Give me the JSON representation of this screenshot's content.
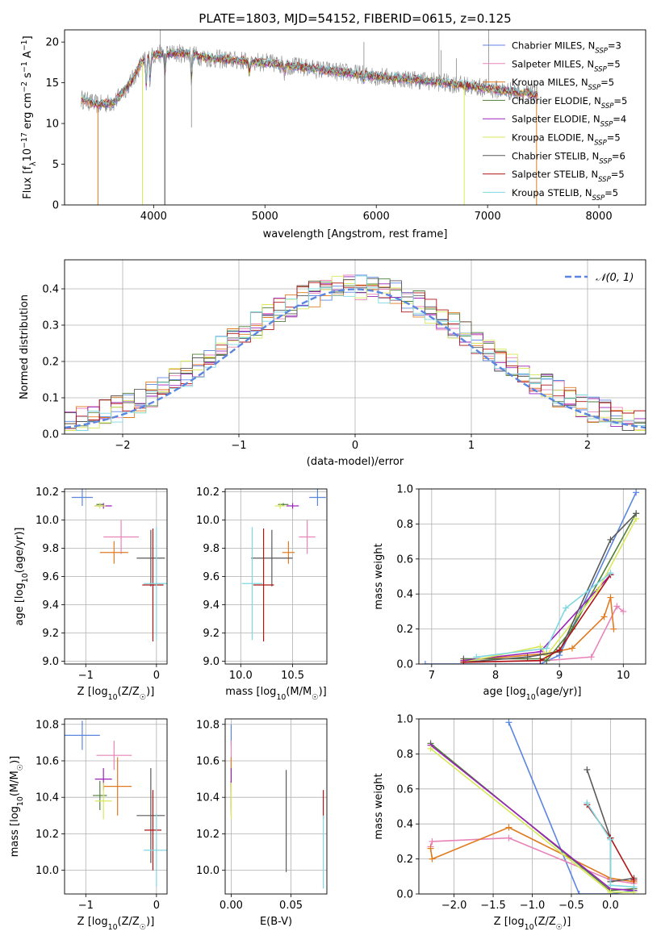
{
  "title": "PLATE=1803, MJD=54152, FIBERID=0615, z=0.125",
  "colors": {
    "chabrier_miles": "#5b86e0",
    "salpeter_miles": "#e884b8",
    "kroupa_miles": "#e07b20",
    "chabrier_elodie": "#4f7f3a",
    "salpeter_elodie": "#9b22b8",
    "kroupa_elodie": "#d8e85a",
    "chabrier_stelib": "#5a5a5a",
    "salpeter_stelib": "#b01515",
    "kroupa_stelib": "#7fd8e0",
    "normal_curve": "#5b86e0"
  },
  "chart_data": [
    {
      "id": "spectrum",
      "type": "line",
      "xlabel": "wavelength [Angstrom, rest frame]",
      "ylabel": "Flux [fλ10⁻¹⁷ erg cm⁻² s⁻¹ A⁻¹]",
      "xlim": [
        3200,
        8420
      ],
      "ylim": [
        0,
        21.5
      ],
      "xticks": [
        "4000",
        "5000",
        "6000",
        "7000",
        "8000"
      ],
      "yticks": [
        "0",
        "5",
        "10",
        "15",
        "20"
      ],
      "grid": false,
      "legend_position": "right",
      "legend": [
        {
          "label": "Chabrier MILES, N",
          "sub": "SSP",
          "suffix": "=3"
        },
        {
          "label": "Salpeter MILES, N",
          "sub": "SSP",
          "suffix": "=5"
        },
        {
          "label": "Kroupa MILES, N",
          "sub": "SSP",
          "suffix": "=5"
        },
        {
          "label": "Chabrier ELODIE, N",
          "sub": "SSP",
          "suffix": "=5"
        },
        {
          "label": "Salpeter ELODIE, N",
          "sub": "SSP",
          "suffix": "=4"
        },
        {
          "label": "Kroupa ELODIE, N",
          "sub": "SSP",
          "suffix": "=5"
        },
        {
          "label": "Chabrier STELIB, N",
          "sub": "SSP",
          "suffix": "=6"
        },
        {
          "label": "Salpeter STELIB, N",
          "sub": "SSP",
          "suffix": "=5"
        },
        {
          "label": "Kroupa STELIB, N",
          "sub": "SSP",
          "suffix": "=5"
        }
      ],
      "continuum": {
        "x": [
          3350,
          3500,
          3650,
          3800,
          3900,
          4000,
          4100,
          4300,
          4500,
          5000,
          5500,
          6000,
          6500,
          7000,
          7300,
          7450
        ],
        "y": [
          13.0,
          12.3,
          12.6,
          15.2,
          17.6,
          18.4,
          18.6,
          18.6,
          18.0,
          17.5,
          16.6,
          15.8,
          15.2,
          14.3,
          13.8,
          13.5
        ]
      }
    },
    {
      "id": "residuals",
      "type": "histogram",
      "xlabel": "(data-model)/error",
      "ylabel": "Normed distribution",
      "xlim": [
        -2.5,
        2.5
      ],
      "ylim": [
        0,
        0.48
      ],
      "xticks": [
        "−2",
        "−1",
        "0",
        "1",
        "2"
      ],
      "yticks": [
        "0.0",
        "0.1",
        "0.2",
        "0.3",
        "0.4"
      ],
      "grid": true,
      "legend_position": "top-right",
      "legend_label": "𝒩(0, 1)"
    },
    {
      "id": "age_vs_Z",
      "type": "scatter",
      "xlabel": "Z [log10(Z/Z☉)]",
      "ylabel": "age  [log10(age/yr)]",
      "xlim": [
        -1.3,
        0.15
      ],
      "ylim": [
        8.98,
        10.22
      ],
      "xticks": [
        "−1",
        "0"
      ],
      "yticks": [
        "9.0",
        "9.2",
        "9.4",
        "9.6",
        "9.8",
        "10.0",
        "10.2"
      ],
      "grid": true,
      "points": [
        {
          "model": "chabrier_miles",
          "x": -1.05,
          "xerr": 0.15,
          "y": 10.16,
          "yerr": 0.06
        },
        {
          "model": "salpeter_miles",
          "x": -0.5,
          "xerr": 0.25,
          "y": 9.88,
          "yerr": 0.12
        },
        {
          "model": "kroupa_miles",
          "x": -0.6,
          "xerr": 0.2,
          "y": 9.77,
          "yerr": 0.08
        },
        {
          "model": "chabrier_elodie",
          "x": -0.8,
          "xerr": 0.05,
          "y": 10.11,
          "yerr": 0.01
        },
        {
          "model": "salpeter_elodie",
          "x": -0.75,
          "xerr": 0.12,
          "y": 10.1,
          "yerr": 0.02
        },
        {
          "model": "kroupa_elodie",
          "x": -0.8,
          "xerr": 0.08,
          "y": 10.1,
          "yerr": 0.02
        },
        {
          "model": "chabrier_stelib",
          "x": -0.08,
          "xerr": 0.2,
          "y": 9.73,
          "yerr": 0.2
        },
        {
          "model": "salpeter_stelib",
          "x": -0.05,
          "xerr": 0.15,
          "y": 9.54,
          "yerr": 0.4
        },
        {
          "model": "kroupa_stelib",
          "x": 0.0,
          "xerr": 0.18,
          "y": 9.55,
          "yerr": 0.4
        }
      ]
    },
    {
      "id": "age_vs_mass",
      "type": "scatter",
      "xlabel": "mass [log10(M/M☉)]",
      "ylabel": "",
      "xlim": [
        9.85,
        10.83
      ],
      "ylim": [
        8.98,
        10.22
      ],
      "xticks": [
        "10.0",
        "10.5"
      ],
      "yticks": [
        "9.0",
        "9.2",
        "9.4",
        "9.6",
        "9.8",
        "10.0",
        "10.2"
      ],
      "grid": true,
      "points": [
        {
          "model": "chabrier_miles",
          "x": 10.74,
          "xerr": 0.08,
          "y": 10.16,
          "yerr": 0.06
        },
        {
          "model": "salpeter_miles",
          "x": 10.64,
          "xerr": 0.08,
          "y": 9.88,
          "yerr": 0.12
        },
        {
          "model": "kroupa_miles",
          "x": 10.46,
          "xerr": 0.06,
          "y": 9.77,
          "yerr": 0.08
        },
        {
          "model": "chabrier_elodie",
          "x": 10.41,
          "xerr": 0.05,
          "y": 10.11,
          "yerr": 0.01
        },
        {
          "model": "salpeter_elodie",
          "x": 10.5,
          "xerr": 0.06,
          "y": 10.1,
          "yerr": 0.02
        },
        {
          "model": "kroupa_elodie",
          "x": 10.38,
          "xerr": 0.05,
          "y": 10.1,
          "yerr": 0.02
        },
        {
          "model": "chabrier_stelib",
          "x": 10.3,
          "xerr": 0.2,
          "y": 9.73,
          "yerr": 0.2
        },
        {
          "model": "salpeter_stelib",
          "x": 10.22,
          "xerr": 0.1,
          "y": 9.54,
          "yerr": 0.4
        },
        {
          "model": "kroupa_stelib",
          "x": 10.11,
          "xerr": 0.1,
          "y": 9.55,
          "yerr": 0.4
        }
      ]
    },
    {
      "id": "massweight_vs_age",
      "type": "line",
      "xlabel": "age  [log10(age/yr)]",
      "ylabel": "mass weight",
      "xlim": [
        6.8,
        10.35
      ],
      "ylim": [
        0,
        1.0
      ],
      "xticks": [
        "7",
        "8",
        "9",
        "10"
      ],
      "yticks": [
        "0.0",
        "0.2",
        "0.4",
        "0.6",
        "0.8",
        "1.0"
      ],
      "grid": true,
      "series": [
        {
          "model": "chabrier_miles",
          "x": [
            6.9,
            8.7,
            9.0,
            10.2
          ],
          "y": [
            0.0,
            0.0,
            0.05,
            0.98
          ]
        },
        {
          "model": "salpeter_miles",
          "x": [
            7.5,
            8.8,
            9.5,
            9.9,
            10.0
          ],
          "y": [
            0.01,
            0.02,
            0.04,
            0.33,
            0.3
          ]
        },
        {
          "model": "kroupa_miles",
          "x": [
            7.5,
            8.8,
            9.2,
            9.7,
            9.8,
            9.85
          ],
          "y": [
            0.02,
            0.06,
            0.09,
            0.27,
            0.38,
            0.2
          ]
        },
        {
          "model": "chabrier_elodie",
          "x": [
            7.5,
            8.7,
            8.8,
            9.2,
            10.2
          ],
          "y": [
            0.03,
            0.03,
            0.02,
            0.2,
            0.86
          ]
        },
        {
          "model": "salpeter_elodie",
          "x": [
            7.5,
            8.7,
            9.8
          ],
          "y": [
            0.02,
            0.07,
            0.51
          ]
        },
        {
          "model": "kroupa_elodie",
          "x": [
            7.5,
            8.7,
            8.8,
            9.6,
            10.2
          ],
          "y": [
            0.01,
            0.1,
            0.05,
            0.42,
            0.83
          ]
        },
        {
          "model": "chabrier_stelib",
          "x": [
            7.5,
            8.5,
            9.0,
            9.8,
            10.2
          ],
          "y": [
            0.01,
            0.04,
            0.07,
            0.71,
            0.86
          ]
        },
        {
          "model": "salpeter_stelib",
          "x": [
            7.5,
            8.7,
            9.0,
            9.8
          ],
          "y": [
            0.01,
            0.02,
            0.08,
            0.51
          ]
        },
        {
          "model": "kroupa_stelib",
          "x": [
            7.7,
            8.8,
            9.1,
            9.8
          ],
          "y": [
            0.04,
            0.09,
            0.32,
            0.52
          ]
        }
      ]
    },
    {
      "id": "mass_vs_Z",
      "type": "scatter",
      "xlabel": "Z [log10(Z/Z☉)]",
      "ylabel": "mass [log10(M/M☉)]",
      "xlim": [
        -1.3,
        0.15
      ],
      "ylim": [
        9.87,
        10.83
      ],
      "xticks": [
        "−1",
        "0"
      ],
      "yticks": [
        "10.0",
        "10.2",
        "10.4",
        "10.6",
        "10.8"
      ],
      "grid": true,
      "points": [
        {
          "model": "chabrier_miles",
          "x": -1.05,
          "xerr": 0.25,
          "y": 10.74,
          "yerr": 0.08
        },
        {
          "model": "salpeter_miles",
          "x": -0.6,
          "xerr": 0.25,
          "y": 10.63,
          "yerr": 0.08
        },
        {
          "model": "kroupa_miles",
          "x": -0.55,
          "xerr": 0.2,
          "y": 10.46,
          "yerr": 0.16
        },
        {
          "model": "chabrier_elodie",
          "x": -0.8,
          "xerr": 0.1,
          "y": 10.41,
          "yerr": 0.08
        },
        {
          "model": "salpeter_elodie",
          "x": -0.75,
          "xerr": 0.12,
          "y": 10.5,
          "yerr": 0.06
        },
        {
          "model": "kroupa_elodie",
          "x": -0.75,
          "xerr": 0.12,
          "y": 10.38,
          "yerr": 0.1
        },
        {
          "model": "chabrier_stelib",
          "x": -0.08,
          "xerr": 0.2,
          "y": 10.3,
          "yerr": 0.26
        },
        {
          "model": "salpeter_stelib",
          "x": -0.05,
          "xerr": 0.12,
          "y": 10.22,
          "yerr": 0.22
        },
        {
          "model": "kroupa_stelib",
          "x": 0.0,
          "xerr": 0.18,
          "y": 10.11,
          "yerr": 0.2
        }
      ]
    },
    {
      "id": "mass_vs_ebv",
      "type": "scatter",
      "xlabel": "E(B-V)",
      "ylabel": "",
      "xlim": [
        -0.005,
        0.08
      ],
      "ylim": [
        9.87,
        10.83
      ],
      "xticks": [
        "0.00",
        "0.05"
      ],
      "yticks": [
        "10.0",
        "10.2",
        "10.4",
        "10.6",
        "10.8"
      ],
      "grid": true,
      "points": [
        {
          "model": "chabrier_miles",
          "x": 0.0,
          "xerr": 0,
          "y": 10.74,
          "yerr": 0.06
        },
        {
          "model": "salpeter_miles",
          "x": 0.0,
          "xerr": 0,
          "y": 10.63,
          "yerr": 0.08
        },
        {
          "model": "kroupa_miles",
          "x": 0.0,
          "xerr": 0,
          "y": 10.46,
          "yerr": 0.16
        },
        {
          "model": "chabrier_elodie",
          "x": 0.0,
          "xerr": 0,
          "y": 10.41,
          "yerr": 0.08
        },
        {
          "model": "salpeter_elodie",
          "x": 0.0,
          "xerr": 0,
          "y": 10.5,
          "yerr": 0.06
        },
        {
          "model": "kroupa_elodie",
          "x": 0.0,
          "xerr": 0,
          "y": 10.38,
          "yerr": 0.1
        },
        {
          "model": "chabrier_stelib",
          "x": 0.046,
          "xerr": 0,
          "y": 10.27,
          "yerr": 0.28
        },
        {
          "model": "salpeter_stelib",
          "x": 0.077,
          "xerr": 0,
          "y": 10.36,
          "yerr": 0.08
        },
        {
          "model": "kroupa_stelib",
          "x": 0.077,
          "xerr": 0,
          "y": 10.1,
          "yerr": 0.2
        }
      ]
    },
    {
      "id": "massweight_vs_Z",
      "type": "line",
      "xlabel": "Z [log10(Z/Z☉)]",
      "ylabel": "mass weight",
      "xlim": [
        -2.45,
        0.45
      ],
      "ylim": [
        0,
        1.0
      ],
      "xticks": [
        "−2.0",
        "−1.5",
        "−1.0",
        "−0.5",
        "0.0"
      ],
      "yticks": [
        "0.0",
        "0.2",
        "0.4",
        "0.6",
        "0.8",
        "1.0"
      ],
      "grid": true,
      "series": [
        {
          "model": "chabrier_miles",
          "x": [
            -1.3,
            -0.4,
            0.0,
            0.3
          ],
          "y": [
            0.98,
            0.0,
            0.0,
            0.02
          ]
        },
        {
          "model": "salpeter_miles",
          "x": [
            -2.3,
            -2.28,
            -1.3,
            0.0,
            0.3
          ],
          "y": [
            0.27,
            0.3,
            0.32,
            0.08,
            0.06
          ]
        },
        {
          "model": "kroupa_miles",
          "x": [
            -2.3,
            -2.28,
            -1.3,
            0.0,
            0.3
          ],
          "y": [
            0.26,
            0.2,
            0.38,
            0.09,
            0.07
          ]
        },
        {
          "model": "chabrier_elodie",
          "x": [
            -2.3,
            0.0,
            0.3
          ],
          "y": [
            0.86,
            0.02,
            0.03
          ]
        },
        {
          "model": "salpeter_elodie",
          "x": [
            -2.3,
            0.0,
            0.3
          ],
          "y": [
            0.85,
            0.03,
            0.02
          ]
        },
        {
          "model": "kroupa_elodie",
          "x": [
            -2.3,
            0.0,
            0.3
          ],
          "y": [
            0.83,
            0.01,
            0.01
          ]
        },
        {
          "model": "chabrier_stelib",
          "x": [
            -0.3,
            0.0,
            0.0,
            0.3
          ],
          "y": [
            0.71,
            0.32,
            0.07,
            0.09
          ]
        },
        {
          "model": "salpeter_stelib",
          "x": [
            -0.3,
            0.0,
            0.3
          ],
          "y": [
            0.51,
            0.32,
            0.08
          ]
        },
        {
          "model": "kroupa_stelib",
          "x": [
            -0.3,
            0.0,
            0.0,
            0.3
          ],
          "y": [
            0.52,
            0.31,
            0.05,
            0.04
          ]
        }
      ]
    }
  ]
}
